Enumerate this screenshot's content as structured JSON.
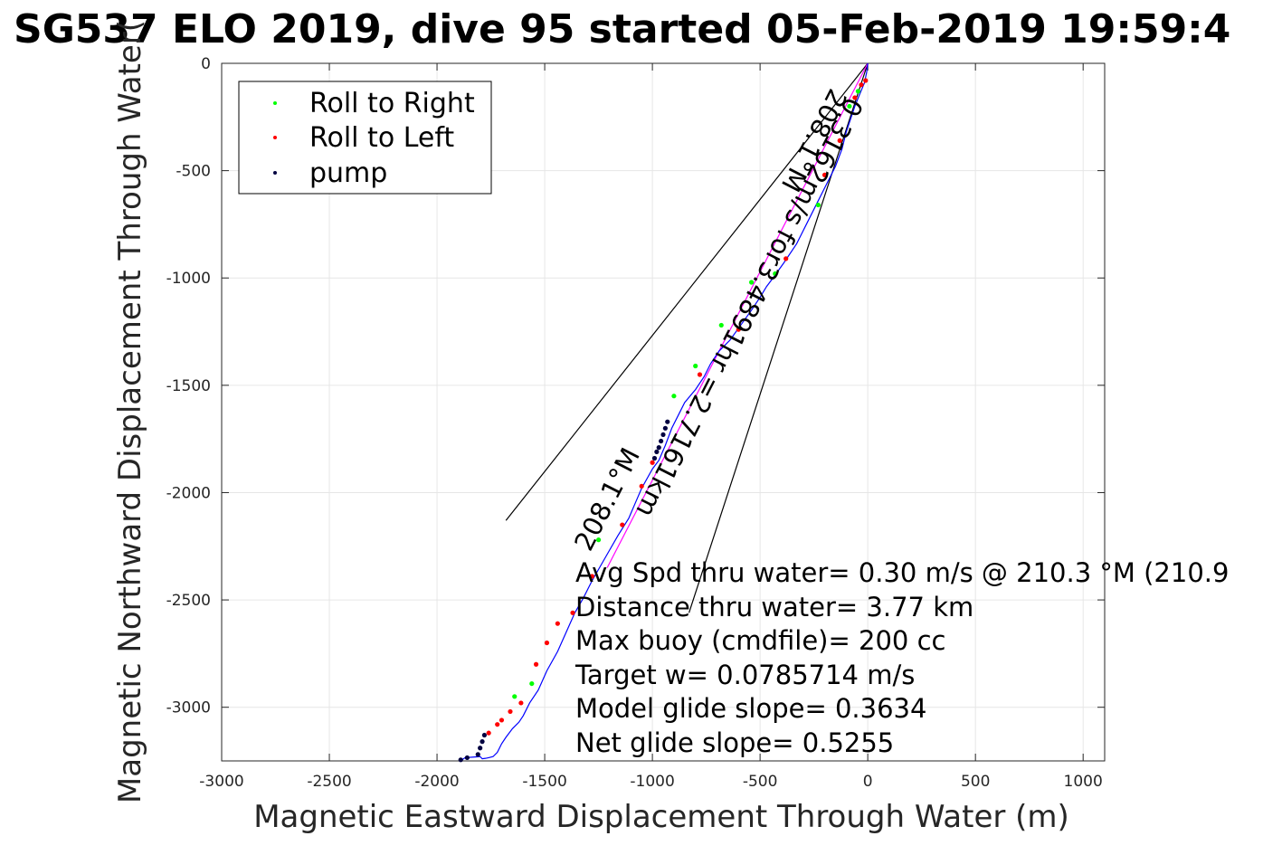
{
  "chart_data": {
    "type": "scatter",
    "title": "SG537 ELO 2019, dive 95 started 05-Feb-2019 19:59:4",
    "xlabel": "Magnetic Eastward Displacement Through Water (m)",
    "ylabel": "Magnetic Northward Displacement Through Water(",
    "xlim": [
      -3000,
      1100
    ],
    "ylim": [
      -3250,
      0
    ],
    "xticks": [
      -3000,
      -2500,
      -2000,
      -1500,
      -1000,
      -500,
      0,
      500,
      1000
    ],
    "yticks": [
      0,
      -500,
      -1000,
      -1500,
      -2000,
      -2500,
      -3000
    ],
    "grid": true,
    "legend": {
      "position": "top-left",
      "entries": [
        {
          "label": "Roll to Right",
          "color": "#00ff00"
        },
        {
          "label": "Roll to Left",
          "color": "#ff0000"
        },
        {
          "label": "pump",
          "color": "#000040"
        }
      ]
    },
    "track": {
      "color": "#0000ff",
      "x": [
        0,
        -5,
        -15,
        -40,
        -60,
        -80,
        -100,
        -120,
        -150,
        -190,
        -230,
        -280,
        -330,
        -390,
        -440,
        -470,
        -500,
        -540,
        -590,
        -640,
        -690,
        -730,
        -760,
        -800,
        -850,
        -880,
        -910,
        -940,
        -970,
        -1000,
        -1050,
        -1080,
        -1110,
        -1160,
        -1200,
        -1240,
        -1280,
        -1320,
        -1360,
        -1400,
        -1440,
        -1490,
        -1530,
        -1570,
        -1600,
        -1620,
        -1650,
        -1680,
        -1700,
        -1720,
        -1740,
        -1760,
        -1775,
        -1790,
        -1800,
        -1830,
        -1870,
        -1890
      ],
      "y": [
        0,
        -40,
        -90,
        -150,
        -200,
        -260,
        -320,
        -400,
        -480,
        -560,
        -640,
        -740,
        -840,
        -930,
        -1000,
        -1040,
        -1090,
        -1150,
        -1220,
        -1290,
        -1340,
        -1400,
        -1460,
        -1520,
        -1580,
        -1640,
        -1700,
        -1780,
        -1850,
        -1890,
        -1980,
        -2050,
        -2120,
        -2200,
        -2270,
        -2340,
        -2410,
        -2490,
        -2560,
        -2650,
        -2740,
        -2830,
        -2920,
        -2980,
        -3040,
        -3070,
        -3100,
        -3140,
        -3170,
        -3210,
        -3230,
        -3235,
        -3238,
        -3240,
        -3230,
        -3232,
        -3235,
        -3250
      ]
    },
    "roll_right": {
      "x": [
        -45,
        -85,
        -230,
        -430,
        -540,
        -680,
        -800,
        -900,
        -1250,
        -1560,
        -1640
      ],
      "y": [
        -130,
        -200,
        -660,
        -980,
        -1020,
        -1220,
        -1410,
        -1550,
        -2220,
        -2890,
        -2950
      ]
    },
    "roll_left": {
      "x": [
        -10,
        -30,
        -60,
        -130,
        -200,
        -380,
        -600,
        -780,
        -1000,
        -1050,
        -1140,
        -1280,
        -1370,
        -1440,
        -1490,
        -1540,
        -1610,
        -1660,
        -1700,
        -1720,
        -1760
      ],
      "y": [
        -80,
        -100,
        -160,
        -360,
        -520,
        -910,
        -1240,
        -1450,
        -1860,
        -1970,
        -2150,
        -2390,
        -2560,
        -2610,
        -2700,
        -2800,
        -2980,
        -3020,
        -3060,
        -3080,
        -3120
      ]
    },
    "pump": {
      "x": [
        -930,
        -940,
        -950,
        -960,
        -970,
        -980,
        -990,
        -1780,
        -1790,
        -1800,
        -1810,
        -1860,
        -1890
      ],
      "y": [
        -1670,
        -1700,
        -1730,
        -1760,
        -1790,
        -1810,
        -1840,
        -3130,
        -3160,
        -3190,
        -3220,
        -3235,
        -3245
      ]
    },
    "net_line": {
      "x": [
        0,
        -1210
      ],
      "y": [
        0,
        -2350
      ]
    },
    "cone_lines": [
      {
        "x": [
          0,
          -1680
        ],
        "y": [
          0,
          -2130
        ]
      },
      {
        "x": [
          0,
          -830
        ],
        "y": [
          0,
          -2560
        ]
      }
    ],
    "rotated_labels": [
      {
        "text": "208.1°M",
        "x": -170,
        "y": -110,
        "angle": 117
      },
      {
        "text": "0.3162m/s for3.4891hr =2.7161km",
        "x": -95,
        "y": -150,
        "angle": 117
      },
      {
        "text": "208.1°M",
        "x": -1290,
        "y": -2280,
        "angle": -63
      }
    ],
    "annotations": [
      "Avg Spd thru water=  0.30 m/s @ 210.3 °M (210.9",
      "Distance thru water=  3.77 km",
      "Max buoy (cmdfile)= 200 cc",
      "Target w= 0.0785714 m/s",
      "Model glide slope= 0.3634",
      "Net glide slope= 0.5255"
    ]
  }
}
